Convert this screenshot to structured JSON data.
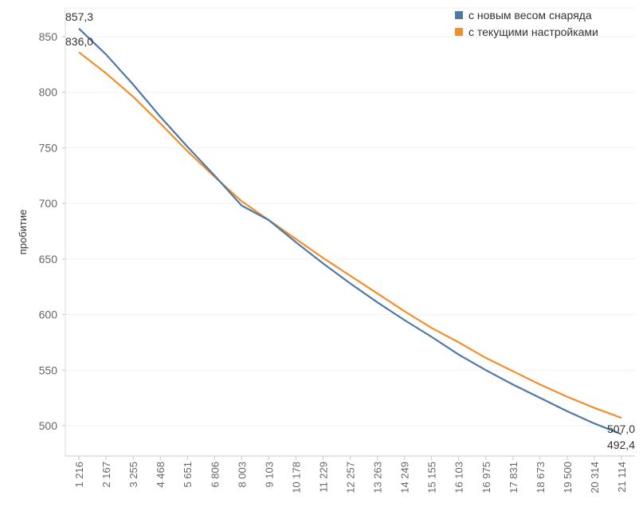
{
  "chart_data": {
    "type": "line",
    "ylabel": "пробитие",
    "xlabel": "",
    "ylim": [
      490,
      860
    ],
    "yticks": [
      500,
      550,
      600,
      650,
      700,
      750,
      800,
      850
    ],
    "grid": true,
    "legend_position": "top-right",
    "categories": [
      "1 216",
      "2 167",
      "3 255",
      "4 468",
      "5 651",
      "6 806",
      "8 003",
      "9 103",
      "10 178",
      "11 229",
      "12 257",
      "13 263",
      "14 249",
      "15 155",
      "16 103",
      "16 975",
      "17 831",
      "18 673",
      "19 500",
      "20 314",
      "21 114"
    ],
    "series": [
      {
        "name": "с новым весом снаряда",
        "color": "#4e79a7",
        "values": [
          857.3,
          834,
          807,
          778,
          751,
          725,
          698,
          685,
          665,
          646,
          628,
          611,
          595,
          580,
          564,
          550,
          537,
          525,
          513,
          502,
          492.4
        ],
        "start_label": "857,3",
        "end_label": "492,4"
      },
      {
        "name": "с текущими настройками",
        "color": "#f28e2b",
        "values": [
          836.0,
          817,
          796,
          772,
          747,
          724,
          702,
          685,
          668,
          651,
          635,
          619,
          603,
          588,
          575,
          561,
          549,
          537,
          526,
          516,
          507.0
        ],
        "start_label": "836,0",
        "end_label": "507,0"
      }
    ]
  }
}
